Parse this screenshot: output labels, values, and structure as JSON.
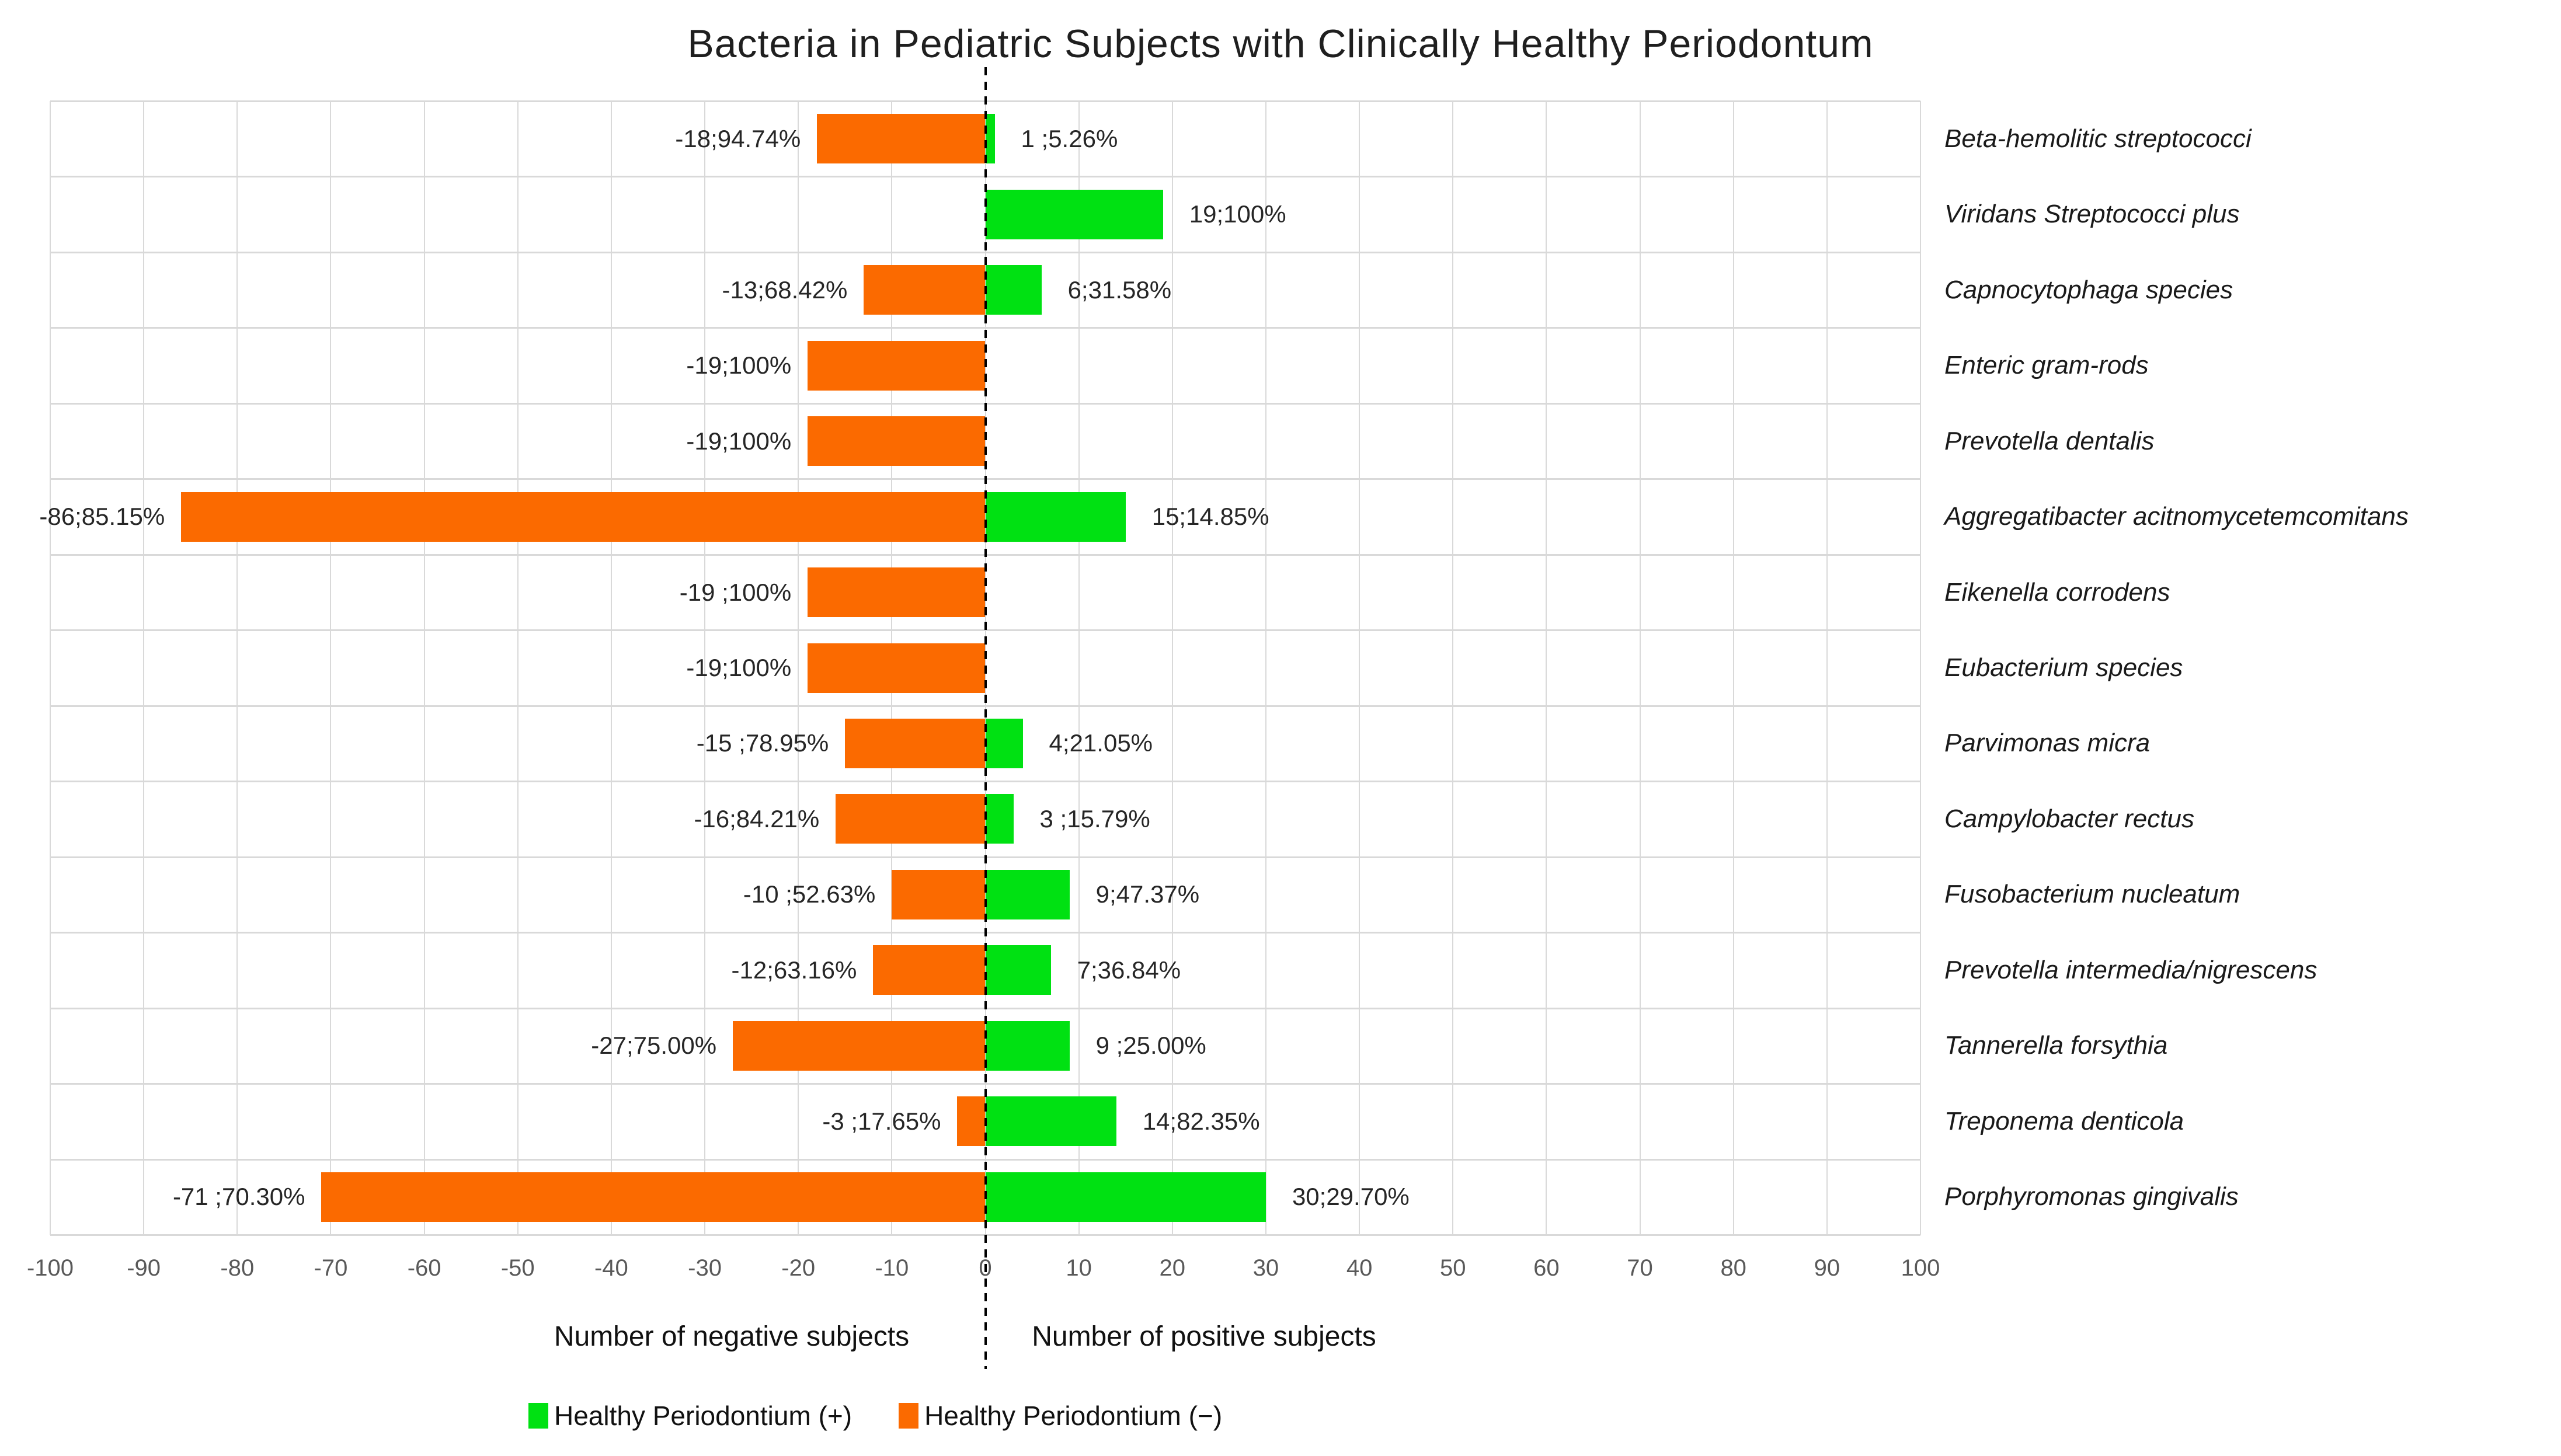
{
  "title": "Bacteria in Pediatric Subjects with Clinically Healthy Periodontum",
  "chart_data": {
    "type": "bar",
    "orientation": "horizontal-diverging",
    "title": "Bacteria in Pediatric Subjects with Clinically Healthy Periodontum",
    "xlim": [
      -100,
      100
    ],
    "xticks": [
      -100,
      -90,
      -80,
      -70,
      -60,
      -50,
      -40,
      -30,
      -20,
      -10,
      0,
      10,
      20,
      30,
      40,
      50,
      60,
      70,
      80,
      90,
      100
    ],
    "grid": true,
    "legend_position": "bottom",
    "xlabel_negative": "Number of negative subjects",
    "xlabel_positive": "Number of positive subjects",
    "series": [
      {
        "name": "Healthy Periodontium (+)",
        "color": "#00E112",
        "values": [
          1,
          19,
          6,
          0,
          0,
          15,
          0,
          0,
          4,
          3,
          9,
          7,
          9,
          14,
          30
        ]
      },
      {
        "name": "Healthy Periodontium (−)",
        "color": "#FB6A00",
        "values": [
          -18,
          0,
          -13,
          -19,
          -19,
          -86,
          -19,
          -19,
          -15,
          -16,
          -10,
          -12,
          -27,
          -3,
          -71
        ]
      }
    ],
    "categories": [
      "Beta-hemolitic streptococci",
      "Viridans Streptococci plus",
      "Capnocytophaga species",
      "Enteric gram-rods",
      "Prevotella dentalis",
      "Aggregatibacter acitnomycetemcomitans",
      "Eikenella corrodens",
      "Eubacterium species",
      "Parvimonas micra",
      "Campylobacter rectus",
      "Fusobacterium nucleatum",
      "Prevotella intermedia/nigrescens",
      "Tannerella forsythia",
      "Treponema denticola",
      "Porphyromonas gingivalis"
    ],
    "rows": [
      {
        "name": "Beta-hemolitic streptococci",
        "neg": -18,
        "pos": 1,
        "neg_label": "-18;94.74%",
        "pos_label": "1 ;5.26%"
      },
      {
        "name": "Viridans Streptococci plus",
        "neg": 0,
        "pos": 19,
        "neg_label": "",
        "pos_label": "19;100%"
      },
      {
        "name": "Capnocytophaga species",
        "neg": -13,
        "pos": 6,
        "neg_label": "-13;68.42%",
        "pos_label": "6;31.58%"
      },
      {
        "name": "Enteric gram-rods",
        "neg": -19,
        "pos": 0,
        "neg_label": "-19;100%",
        "pos_label": ""
      },
      {
        "name": "Prevotella dentalis",
        "neg": -19,
        "pos": 0,
        "neg_label": "-19;100%",
        "pos_label": ""
      },
      {
        "name": "Aggregatibacter acitnomycetemcomitans",
        "neg": -86,
        "pos": 15,
        "neg_label": "-86;85.15%",
        "pos_label": "15;14.85%"
      },
      {
        "name": "Eikenella corrodens",
        "neg": -19,
        "pos": 0,
        "neg_label": "-19 ;100%",
        "pos_label": ""
      },
      {
        "name": "Eubacterium species",
        "neg": -19,
        "pos": 0,
        "neg_label": "-19;100%",
        "pos_label": ""
      },
      {
        "name": "Parvimonas micra",
        "neg": -15,
        "pos": 4,
        "neg_label": "-15 ;78.95%",
        "pos_label": "4;21.05%"
      },
      {
        "name": "Campylobacter rectus",
        "neg": -16,
        "pos": 3,
        "neg_label": "-16;84.21%",
        "pos_label": "3 ;15.79%"
      },
      {
        "name": "Fusobacterium nucleatum",
        "neg": -10,
        "pos": 9,
        "neg_label": "-10 ;52.63%",
        "pos_label": "9;47.37%"
      },
      {
        "name": "Prevotella intermedia/nigrescens",
        "neg": -12,
        "pos": 7,
        "neg_label": "-12;63.16%",
        "pos_label": "7;36.84%"
      },
      {
        "name": "Tannerella forsythia",
        "neg": -27,
        "pos": 9,
        "neg_label": "-27;75.00%",
        "pos_label": "9 ;25.00%"
      },
      {
        "name": "Treponema denticola",
        "neg": -3,
        "pos": 14,
        "neg_label": "-3 ;17.65%",
        "pos_label": "14;82.35%"
      },
      {
        "name": "Porphyromonas gingivalis",
        "neg": -71,
        "pos": 30,
        "neg_label": "-71 ;70.30%",
        "pos_label": "30;29.70%"
      }
    ]
  },
  "legend": {
    "positive_label": "Healthy Periodontium (+)",
    "negative_label": "Healthy Periodontium (−)"
  },
  "colors": {
    "positive": "#00E112",
    "negative": "#FB6A00",
    "grid": "#d9d9d9",
    "tick_text": "#595959"
  }
}
